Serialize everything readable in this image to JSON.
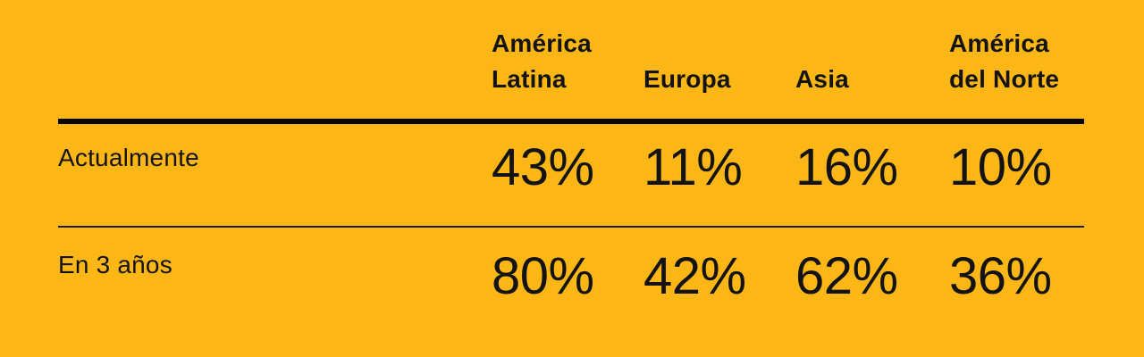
{
  "theme": {
    "bg": "#FCB615",
    "ink": "#131313",
    "rule_thick": "#000000",
    "rule_thin": "#1c1c1c"
  },
  "table": {
    "columns": [
      "América Latina",
      "Europa",
      "Asia",
      "América del Norte"
    ],
    "rows": [
      {
        "label": "Actualmente",
        "values": [
          "43%",
          "11%",
          "16%",
          "10%"
        ]
      },
      {
        "label": "En 3 años",
        "values": [
          "80%",
          "42%",
          "62%",
          "36%"
        ]
      }
    ]
  },
  "chart_data": {
    "type": "table",
    "title": "",
    "categories": [
      "América Latina",
      "Europa",
      "Asia",
      "América del Norte"
    ],
    "series": [
      {
        "name": "Actualmente",
        "values": [
          43,
          11,
          16,
          10
        ]
      },
      {
        "name": "En 3 años",
        "values": [
          80,
          42,
          62,
          36
        ]
      }
    ],
    "value_format": "percent",
    "layout_hints": {
      "header_rule": "thick",
      "row_divider": "thin",
      "background": "#FCB615"
    }
  }
}
